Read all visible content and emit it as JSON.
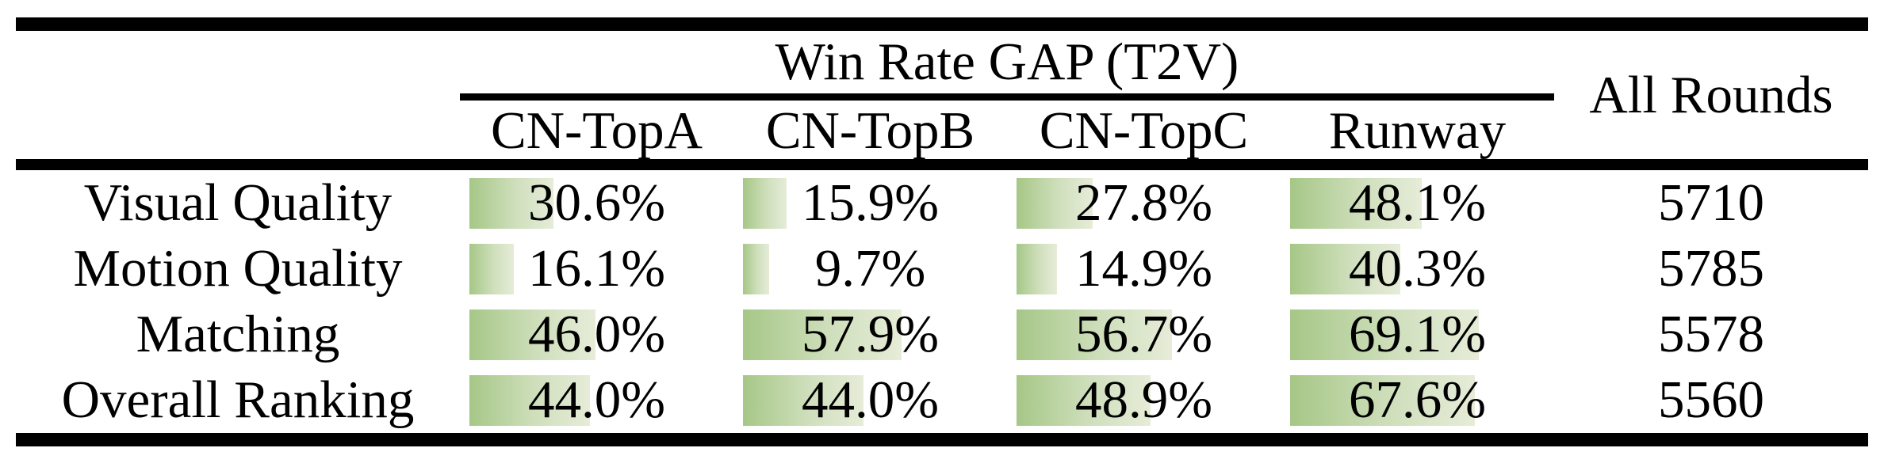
{
  "table": {
    "title": "Win Rate GAP (T2V)",
    "all_rounds_header": "All Rounds",
    "columns": [
      "CN-TopA",
      "CN-TopB",
      "CN-TopC",
      "Runway"
    ],
    "rows": [
      {
        "label": "Visual Quality",
        "values": [
          30.6,
          15.9,
          27.8,
          48.1
        ],
        "display": [
          "30.6%",
          "15.9%",
          "27.8%",
          "48.1%"
        ],
        "all_rounds": "5710"
      },
      {
        "label": "Motion Quality",
        "values": [
          16.1,
          9.7,
          14.9,
          40.3
        ],
        "display": [
          "16.1%",
          "9.7%",
          "14.9%",
          "40.3%"
        ],
        "all_rounds": "5785"
      },
      {
        "label": "Matching",
        "values": [
          46.0,
          57.9,
          56.7,
          69.1
        ],
        "display": [
          "46.0%",
          "57.9%",
          "56.7%",
          "69.1%"
        ],
        "all_rounds": "5578"
      },
      {
        "label": "Overall Ranking",
        "values": [
          44.0,
          44.0,
          48.9,
          67.6
        ],
        "display": [
          "44.0%",
          "44.0%",
          "48.9%",
          "67.6%"
        ],
        "all_rounds": "5560"
      }
    ]
  },
  "colors": {
    "bar_gradient_start": "#a6c787",
    "bar_gradient_end": "#e6ecd8",
    "rule": "#000000",
    "text": "#000000",
    "background": "#ffffff"
  },
  "chart_data": {
    "type": "table",
    "title": "Win Rate GAP (T2V)",
    "columns": [
      "CN-TopA",
      "CN-TopB",
      "CN-TopC",
      "Runway",
      "All Rounds"
    ],
    "categories": [
      "Visual Quality",
      "Motion Quality",
      "Matching",
      "Overall Ranking"
    ],
    "series": [
      {
        "name": "CN-TopA",
        "values": [
          30.6,
          16.1,
          46.0,
          44.0
        ]
      },
      {
        "name": "CN-TopB",
        "values": [
          15.9,
          9.7,
          57.9,
          44.0
        ]
      },
      {
        "name": "CN-TopC",
        "values": [
          27.8,
          14.9,
          56.7,
          48.9
        ]
      },
      {
        "name": "Runway",
        "values": [
          48.1,
          40.3,
          69.1,
          67.6
        ]
      }
    ],
    "all_rounds": [
      5710,
      5785,
      5578,
      5560
    ],
    "unit": "percent",
    "bar_scale": "bar width = value percent of column width, left-anchored green gradient"
  }
}
